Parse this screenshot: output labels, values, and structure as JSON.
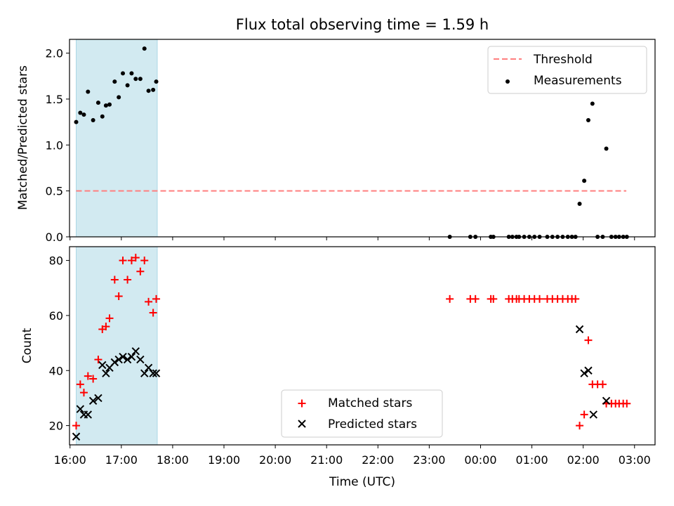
{
  "figure": {
    "title": "Flux total observing time = 1.59 h",
    "xlabel": "Time (UTC)",
    "xticks": [
      "16:00",
      "17:00",
      "18:00",
      "19:00",
      "20:00",
      "21:00",
      "22:00",
      "23:00",
      "00:00",
      "01:00",
      "02:00",
      "03:00"
    ],
    "xlim_hours": [
      15.99,
      27.4
    ],
    "highlight_span_hours": [
      16.12,
      17.7
    ],
    "colors": {
      "highlight": "#add8e6",
      "threshold": "#ff7f7f",
      "matched": "#ff0000",
      "predicted": "#000000",
      "measurement": "#000000"
    }
  },
  "chart_data": [
    {
      "type": "scatter",
      "panel": "top",
      "ylabel": "Matched/Predicted stars",
      "ylim": [
        0,
        2.15
      ],
      "yticks": [
        0.0,
        0.5,
        1.0,
        1.5,
        2.0
      ],
      "ytick_labels": [
        "0.0",
        "0.5",
        "1.0",
        "1.5",
        "2.0"
      ],
      "legend": {
        "placement": "upper right",
        "entries": [
          "Threshold",
          "Measurements"
        ]
      },
      "threshold": {
        "name": "Threshold",
        "value": 0.5,
        "x_range": [
          16.12,
          26.84
        ]
      },
      "series": [
        {
          "name": "Measurements",
          "x": [
            16.12,
            16.2,
            16.27,
            16.35,
            16.45,
            16.55,
            16.63,
            16.7,
            16.77,
            16.87,
            16.95,
            17.03,
            17.12,
            17.2,
            17.28,
            17.37,
            17.45,
            17.53,
            17.62,
            17.68,
            23.4,
            23.8,
            23.9,
            24.2,
            24.25,
            24.55,
            24.62,
            24.7,
            24.75,
            24.85,
            24.95,
            25.05,
            25.15,
            25.3,
            25.4,
            25.5,
            25.6,
            25.7,
            25.78,
            25.85,
            25.93,
            26.02,
            26.1,
            26.18,
            26.28,
            26.38,
            26.45,
            26.55,
            26.63,
            26.7,
            26.78,
            26.85
          ],
          "y": [
            1.25,
            1.35,
            1.33,
            1.58,
            1.27,
            1.46,
            1.31,
            1.43,
            1.44,
            1.69,
            1.52,
            1.78,
            1.65,
            1.78,
            1.72,
            1.72,
            2.05,
            1.59,
            1.6,
            1.69,
            0,
            0,
            0,
            0,
            0,
            0,
            0,
            0,
            0,
            0,
            0,
            0,
            0,
            0,
            0,
            0,
            0,
            0,
            0,
            0,
            0.36,
            0.61,
            1.27,
            1.45,
            0,
            0,
            0.96,
            0,
            0,
            0,
            0,
            0
          ]
        }
      ]
    },
    {
      "type": "scatter",
      "panel": "bottom",
      "ylabel": "Count",
      "ylim": [
        13,
        85
      ],
      "yticks": [
        20,
        40,
        60,
        80
      ],
      "ytick_labels": [
        "20",
        "40",
        "60",
        "80"
      ],
      "legend": {
        "placement": "lower center",
        "entries": [
          "Matched stars",
          "Predicted stars"
        ]
      },
      "series": [
        {
          "name": "Matched stars",
          "x": [
            16.12,
            16.2,
            16.27,
            16.35,
            16.45,
            16.55,
            16.63,
            16.7,
            16.77,
            16.87,
            16.95,
            17.03,
            17.12,
            17.2,
            17.28,
            17.37,
            17.45,
            17.53,
            17.62,
            17.68,
            23.4,
            23.8,
            23.9,
            24.2,
            24.25,
            24.55,
            24.62,
            24.7,
            24.75,
            24.85,
            24.95,
            25.05,
            25.15,
            25.3,
            25.4,
            25.5,
            25.6,
            25.7,
            25.78,
            25.85,
            25.93,
            26.02,
            26.1,
            26.18,
            26.28,
            26.38,
            26.45,
            26.55,
            26.63,
            26.7,
            26.78,
            26.85
          ],
          "y": [
            20,
            35,
            32,
            38,
            37,
            44,
            55,
            56,
            59,
            73,
            67,
            80,
            73,
            80,
            81,
            76,
            80,
            65,
            61,
            66,
            66,
            66,
            66,
            66,
            66,
            66,
            66,
            66,
            66,
            66,
            66,
            66,
            66,
            66,
            66,
            66,
            66,
            66,
            66,
            66,
            20,
            24,
            51,
            35,
            35,
            35,
            28,
            28,
            28,
            28,
            28,
            28
          ]
        },
        {
          "name": "Predicted stars",
          "x": [
            16.12,
            16.2,
            16.27,
            16.35,
            16.45,
            16.55,
            16.63,
            16.7,
            16.77,
            16.87,
            16.95,
            17.03,
            17.12,
            17.2,
            17.28,
            17.37,
            17.45,
            17.53,
            17.62,
            17.68,
            25.93,
            26.02,
            26.1,
            26.2,
            26.45
          ],
          "y": [
            16,
            26,
            24,
            24,
            29,
            30,
            42,
            39,
            41,
            43,
            44,
            45,
            44,
            45,
            47,
            44,
            39,
            41,
            39,
            39,
            55,
            39,
            40,
            24,
            29
          ]
        }
      ]
    }
  ]
}
